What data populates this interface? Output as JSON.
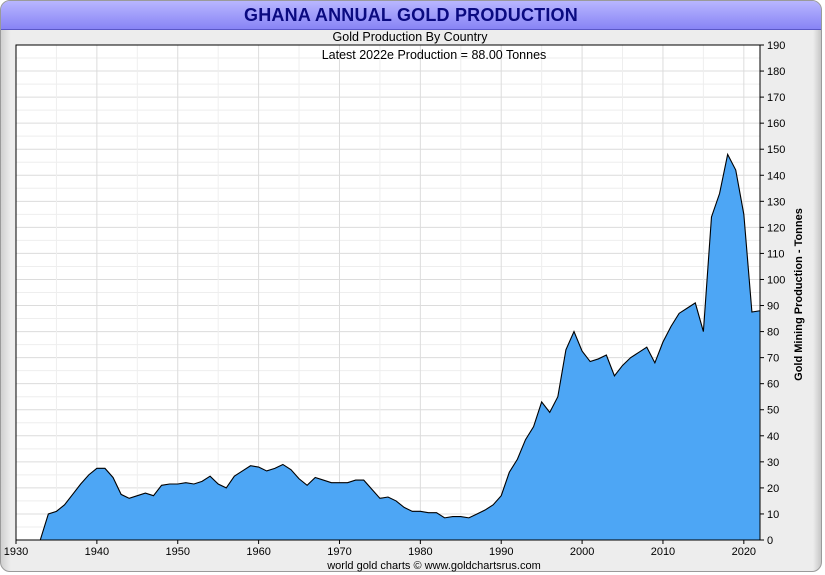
{
  "chart_data": {
    "type": "area",
    "title": "GHANA ANNUAL GOLD PRODUCTION",
    "subtitle": "Gold Production By Country",
    "subtitle2": "Latest 2022e  Production = 88.00 Tonnes",
    "ylabel": "Gold Mining Production - Tonnes",
    "footer": "world gold charts © www.goldchartsrus.com",
    "xlim": [
      1930,
      2022
    ],
    "ylim": [
      0,
      190
    ],
    "x_ticks": [
      1930,
      1940,
      1950,
      1960,
      1970,
      1980,
      1990,
      2000,
      2010,
      2020
    ],
    "y_ticks": [
      0,
      10,
      20,
      30,
      40,
      50,
      60,
      70,
      80,
      90,
      100,
      110,
      120,
      130,
      140,
      150,
      160,
      170,
      180,
      190
    ],
    "grid": true,
    "y_axis_position": "right",
    "fill_color": "#4da6f5",
    "line_color": "#000000",
    "x": [
      1930,
      1931,
      1932,
      1933,
      1934,
      1935,
      1936,
      1937,
      1938,
      1939,
      1940,
      1941,
      1942,
      1943,
      1944,
      1945,
      1946,
      1947,
      1948,
      1949,
      1950,
      1951,
      1952,
      1953,
      1954,
      1955,
      1956,
      1957,
      1958,
      1959,
      1960,
      1961,
      1962,
      1963,
      1964,
      1965,
      1966,
      1967,
      1968,
      1969,
      1970,
      1971,
      1972,
      1973,
      1974,
      1975,
      1976,
      1977,
      1978,
      1979,
      1980,
      1981,
      1982,
      1983,
      1984,
      1985,
      1986,
      1987,
      1988,
      1989,
      1990,
      1991,
      1992,
      1993,
      1994,
      1995,
      1996,
      1997,
      1998,
      1999,
      2000,
      2001,
      2002,
      2003,
      2004,
      2005,
      2006,
      2007,
      2008,
      2009,
      2010,
      2011,
      2012,
      2013,
      2014,
      2015,
      2016,
      2017,
      2018,
      2019,
      2020,
      2021,
      2022
    ],
    "values": [
      0,
      0,
      0,
      0,
      10,
      11,
      13.5,
      17.5,
      21.5,
      25,
      27.5,
      27.5,
      24,
      17.5,
      16,
      17,
      18,
      17,
      21,
      21.5,
      21.5,
      22,
      21.5,
      22.5,
      24.5,
      21.5,
      20,
      24.5,
      26.5,
      28.5,
      28,
      26.5,
      27.5,
      29,
      27,
      23.5,
      21,
      24,
      23,
      22,
      22,
      22,
      23,
      23,
      19.5,
      16,
      16.5,
      15,
      12.5,
      11,
      11,
      10.5,
      10.5,
      8.5,
      9,
      9,
      8.5,
      10,
      11.5,
      13.5,
      17,
      26,
      31,
      38.5,
      43.5,
      53,
      49,
      55,
      73,
      80,
      72.5,
      68.5,
      69.5,
      71,
      63,
      67,
      70,
      72,
      74,
      68,
      76,
      82,
      87,
      89,
      91,
      80,
      124,
      133,
      148,
      142,
      125,
      87.5,
      88
    ]
  }
}
